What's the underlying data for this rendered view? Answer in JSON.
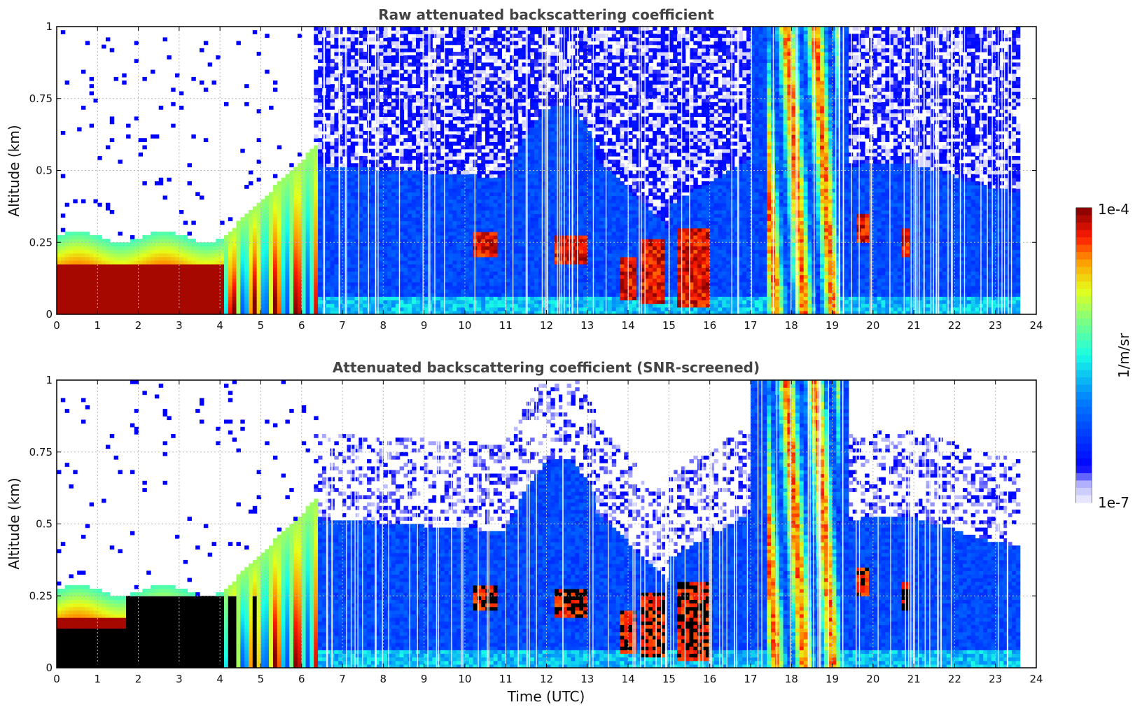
{
  "chart_data": [
    {
      "type": "heatmap",
      "title": "Raw attenuated backscattering coefficient",
      "xlabel": "",
      "ylabel": "Altitude (km)",
      "xlim": [
        0,
        24
      ],
      "ylim": [
        0,
        1
      ],
      "x_ticks": [
        "0",
        "1",
        "2",
        "3",
        "4",
        "5",
        "6",
        "7",
        "8",
        "9",
        "10",
        "11",
        "12",
        "13",
        "14",
        "15",
        "16",
        "17",
        "18",
        "19",
        "20",
        "21",
        "22",
        "23",
        "24"
      ],
      "y_ticks": [
        "0",
        "0.25",
        "0.5",
        "0.75",
        "1"
      ],
      "grid": true,
      "data_end_time": 23.55,
      "features": [
        {
          "kind": "aerosol_layer",
          "t": [
            0,
            4.1
          ],
          "alt": [
            0,
            0.28
          ],
          "intensity": "high"
        },
        {
          "kind": "rising_plumes",
          "t": [
            4.1,
            6.4
          ],
          "alt": [
            0,
            0.6
          ],
          "intensity": "high"
        },
        {
          "kind": "boundary_layer",
          "t": [
            6.4,
            17
          ],
          "alt": [
            0,
            0.55
          ],
          "intensity": "low"
        },
        {
          "kind": "cloud_band",
          "t": [
            17.4,
            19.2
          ],
          "alt": [
            0,
            1
          ],
          "intensity": "medium-high"
        },
        {
          "kind": "patch",
          "t": [
            12.2,
            13.0
          ],
          "alt": [
            0.18,
            0.28
          ],
          "intensity": "high"
        },
        {
          "kind": "patch",
          "t": [
            14.3,
            14.9
          ],
          "alt": [
            0.05,
            0.25
          ],
          "intensity": "high"
        },
        {
          "kind": "patch",
          "t": [
            19.6,
            19.9
          ],
          "alt": [
            0.25,
            0.35
          ],
          "intensity": "high"
        },
        {
          "kind": "patch",
          "t": [
            20.7,
            20.9
          ],
          "alt": [
            0.2,
            0.3
          ],
          "intensity": "high"
        }
      ]
    },
    {
      "type": "heatmap",
      "title": "Attenuated backscattering coefficient (SNR-screened)",
      "xlabel": "Time (UTC)",
      "ylabel": "Altitude (km)",
      "xlim": [
        0,
        24
      ],
      "ylim": [
        0,
        1
      ],
      "x_ticks": [
        "0",
        "1",
        "2",
        "3",
        "4",
        "5",
        "6",
        "7",
        "8",
        "9",
        "10",
        "11",
        "12",
        "13",
        "14",
        "15",
        "16",
        "17",
        "18",
        "19",
        "20",
        "21",
        "22",
        "23",
        "24"
      ],
      "y_ticks": [
        "0",
        "0.25",
        "0.5",
        "0.75",
        "1"
      ],
      "grid": true,
      "data_end_time": 23.55,
      "features": [
        {
          "kind": "saturated_black",
          "t": [
            0,
            5.0
          ],
          "alt": [
            0,
            0.25
          ]
        },
        {
          "kind": "rising_plumes",
          "t": [
            4.1,
            6.4
          ],
          "alt": [
            0,
            0.6
          ],
          "intensity": "high"
        },
        {
          "kind": "boundary_layer",
          "t": [
            6.4,
            17
          ],
          "alt": [
            0,
            0.55
          ],
          "intensity": "low"
        },
        {
          "kind": "cloud_band",
          "t": [
            17.4,
            19.2
          ],
          "alt": [
            0,
            1
          ],
          "intensity": "medium-high"
        }
      ]
    }
  ],
  "colorbar": {
    "max_label": "1e-4",
    "min_label": "1e-7",
    "unit_label": "1/m/sr",
    "colormap": "jet"
  },
  "colors": {
    "title": "#444444",
    "low": "#0a1cff",
    "faint": "#e6e6fb",
    "high": "#800000",
    "saturated": "#000000"
  }
}
